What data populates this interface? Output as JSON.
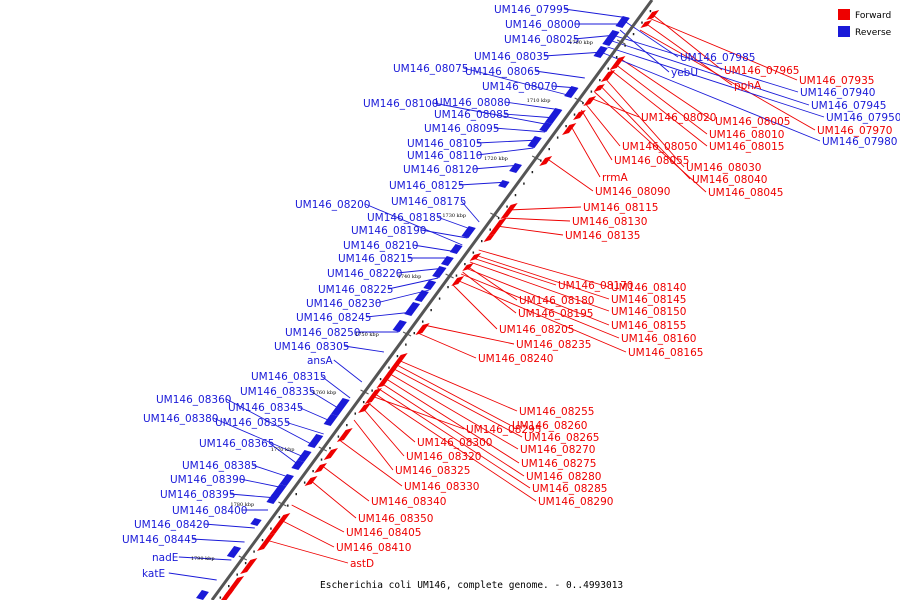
{
  "legend": {
    "forward_label": "Forward",
    "reverse_label": "Reverse"
  },
  "colors": {
    "forward": "#ee0000",
    "reverse": "#1a1ad8",
    "backbone": "#555555"
  },
  "caption": "Escherichia coli UM146, complete genome. - 0..4993013",
  "ticks": [
    "1700 kbp",
    "1710 kbp",
    "1720 kbp",
    "1730 kbp",
    "1740 kbp",
    "1750 kbp",
    "1760 kbp",
    "1770 kbp",
    "1780 kbp",
    "1790 kbp"
  ],
  "forward_genes": [
    "UM146_07935",
    "UM146_07965",
    "pphA",
    "UM146_07970",
    "UM146_08005",
    "UM146_08010",
    "UM146_08015",
    "UM146_08020",
    "UM146_08030",
    "UM146_08040",
    "UM146_08045",
    "UM146_08050",
    "UM146_08055",
    "rrmA",
    "UM146_08090",
    "UM146_08115",
    "UM146_08130",
    "UM146_08135",
    "UM146_08140",
    "UM146_08145",
    "UM146_08150",
    "UM146_08155",
    "UM146_08160",
    "UM146_08165",
    "UM146_08170",
    "UM146_08180",
    "UM146_08195",
    "UM146_08205",
    "UM146_08235",
    "UM146_08240",
    "UM146_08255",
    "UM146_08260",
    "UM146_08265",
    "UM146_08270",
    "UM146_08275",
    "UM146_08280",
    "UM146_08285",
    "UM146_08290",
    "UM146_08295",
    "UM146_08300",
    "UM146_08320",
    "UM146_08325",
    "UM146_08330",
    "UM146_08340",
    "UM146_08350",
    "UM146_08405",
    "UM146_08410",
    "astD"
  ],
  "reverse_genes": [
    "UM146_07995",
    "UM146_08000",
    "UM146_08025",
    "UM146_08035",
    "UM146_08065",
    "UM146_08070",
    "UM146_08075",
    "UM146_08080",
    "UM146_08085",
    "UM146_08100",
    "UM146_08095",
    "UM146_08105",
    "UM146_08110",
    "UM146_08120",
    "UM146_08125",
    "UM146_08175",
    "UM146_08185",
    "UM146_08190",
    "UM146_08200",
    "UM146_08210",
    "UM146_08215",
    "UM146_08220",
    "UM146_08225",
    "UM146_08230",
    "UM146_08245",
    "UM146_08250",
    "UM146_08305",
    "ansA",
    "UM146_08315",
    "UM146_08335",
    "UM146_08345",
    "UM146_08355",
    "UM146_08360",
    "UM146_08380",
    "UM146_08365",
    "UM146_08385",
    "UM146_08390",
    "UM146_08395",
    "UM146_08400",
    "UM146_08420",
    "UM146_08445",
    "nadE",
    "katE",
    "UM146_07985",
    "yebU",
    "UM146_07940",
    "UM146_07945",
    "UM146_07950",
    "UM146_07980"
  ]
}
